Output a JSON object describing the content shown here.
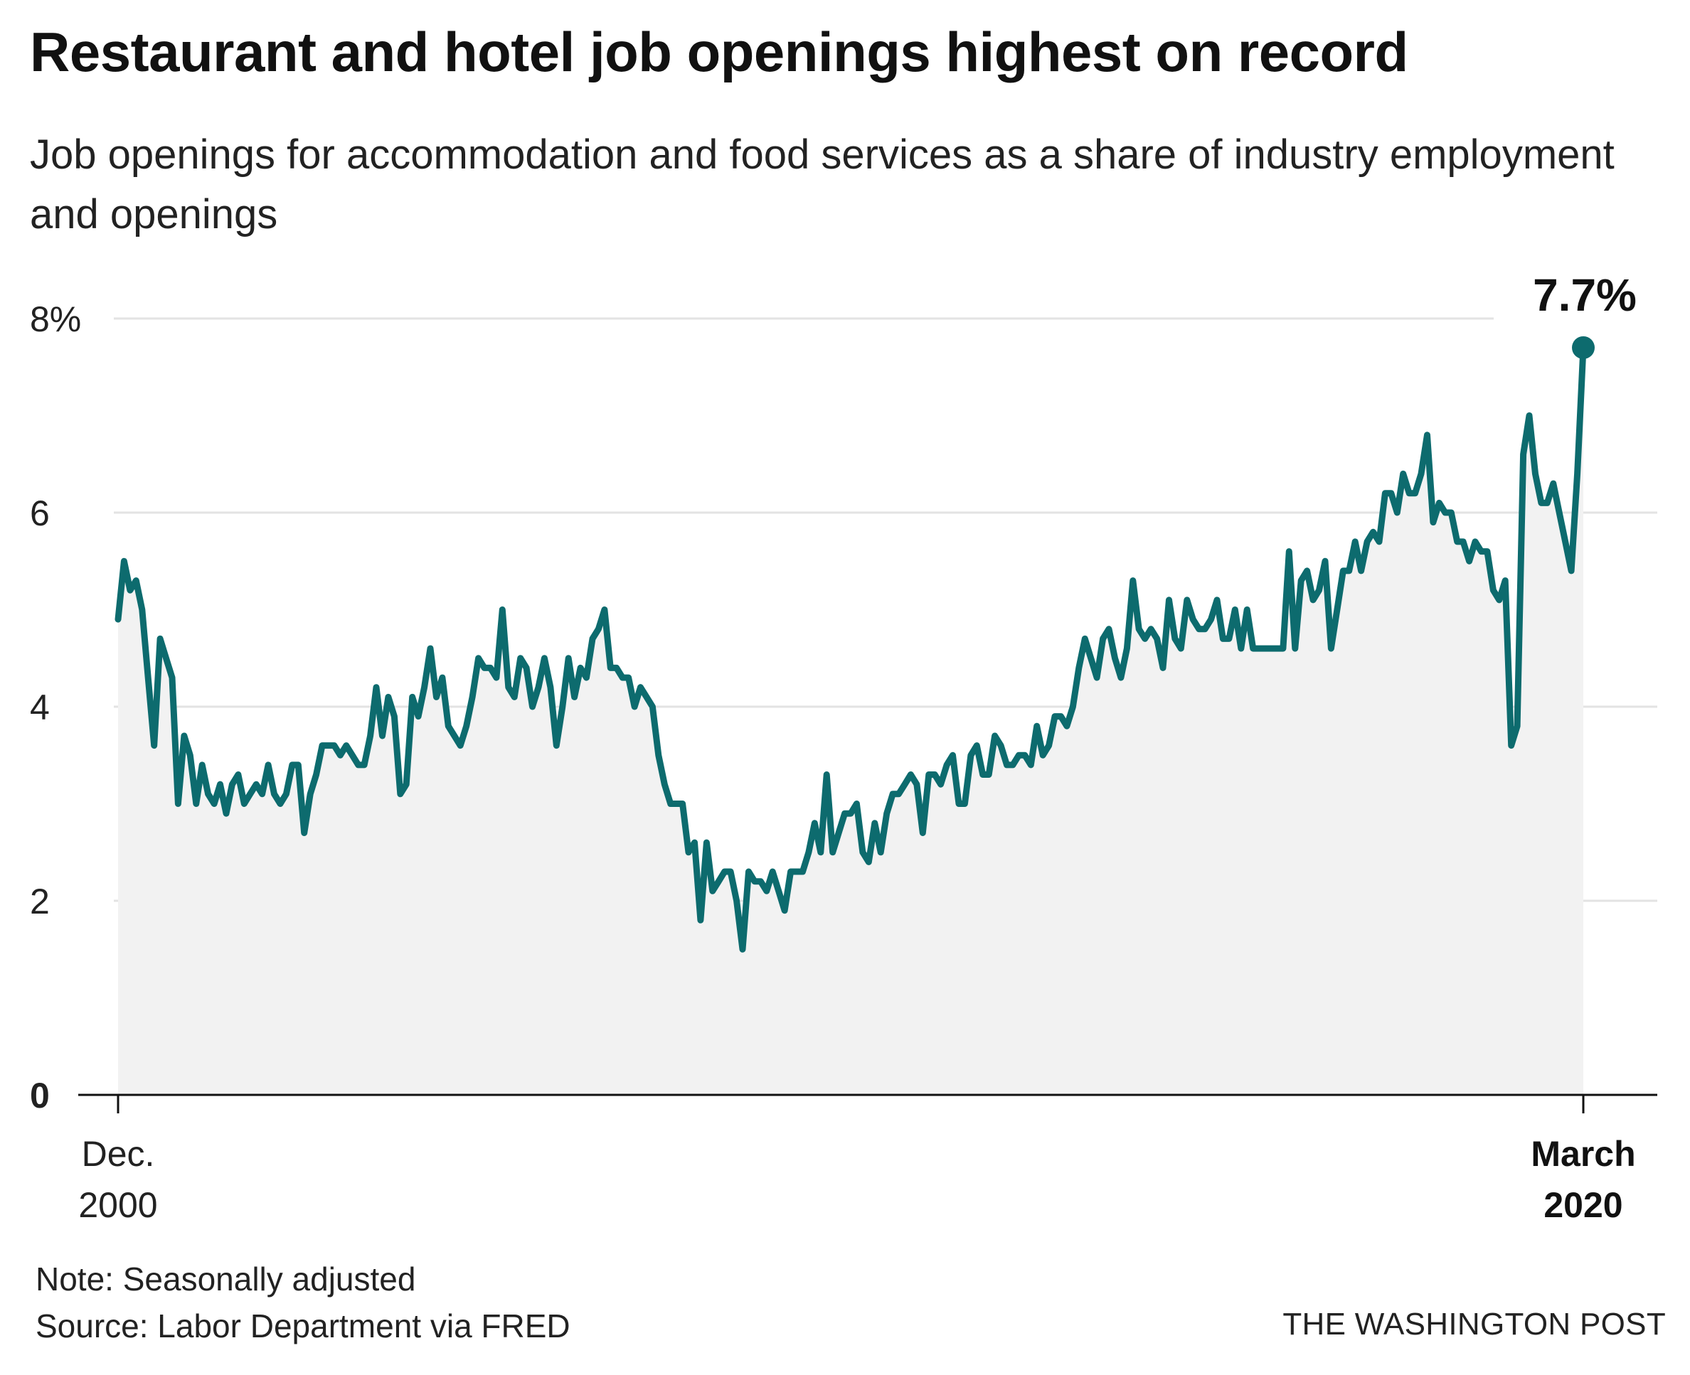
{
  "title": "Restaurant and hotel job openings highest on record",
  "subtitle": "Job openings for accommodation and food services as a share of industry employment and openings",
  "note": "Note: Seasonally adjusted",
  "source": "Source: Labor Department via FRED",
  "credit": "THE WASHINGTON POST",
  "colors": {
    "line": "#0d6b6e",
    "area": "#f2f2f2",
    "grid": "#e3e3e3",
    "axis": "#111111"
  },
  "chart_data": {
    "type": "area",
    "title": "Restaurant and hotel job openings highest on record",
    "ylabel": "",
    "xlabel": "",
    "ylim": [
      0,
      8
    ],
    "yticks": [
      {
        "value": 0,
        "label": "0"
      },
      {
        "value": 2,
        "label": "2"
      },
      {
        "value": 4,
        "label": "4"
      },
      {
        "value": 6,
        "label": "6"
      },
      {
        "value": 8,
        "label": "8%"
      }
    ],
    "xticks": [
      {
        "value": "2000-12",
        "lines": [
          "Dec.",
          "2000"
        ],
        "bold": false
      },
      {
        "value": "2020-03",
        "lines": [
          "March",
          "2020"
        ],
        "bold": true
      }
    ],
    "grid": true,
    "start": "2000-12",
    "end": "2020-03",
    "end_annotation": "7.7%",
    "series": [
      {
        "values": [
          4.9,
          5.5,
          5.2,
          5.3,
          5.0,
          4.3,
          3.6,
          4.7,
          4.5,
          4.3,
          3.0,
          3.7,
          3.5,
          3.0,
          3.4,
          3.1,
          3.0,
          3.2,
          2.9,
          3.2,
          3.3,
          3.0,
          3.1,
          3.2,
          3.1,
          3.4,
          3.1,
          3.0,
          3.1,
          3.4,
          3.4,
          2.7,
          3.1,
          3.3,
          3.6,
          3.6,
          3.6,
          3.5,
          3.6,
          3.5,
          3.4,
          3.4,
          3.7,
          4.2,
          3.7,
          4.1,
          3.9,
          3.1,
          3.2,
          4.1,
          3.9,
          4.2,
          4.6,
          4.1,
          4.3,
          3.8,
          3.7,
          3.6,
          3.8,
          4.1,
          4.5,
          4.4,
          4.4,
          4.3,
          5.0,
          4.2,
          4.1,
          4.5,
          4.4,
          4.0,
          4.2,
          4.5,
          4.2,
          3.6,
          4.0,
          4.5,
          4.1,
          4.4,
          4.3,
          4.7,
          4.8,
          5.0,
          4.4,
          4.4,
          4.3,
          4.3,
          4.0,
          4.2,
          4.1,
          4.0,
          3.5,
          3.2,
          3.0,
          3.0,
          3.0,
          2.5,
          2.6,
          1.8,
          2.6,
          2.1,
          2.2,
          2.3,
          2.3,
          2.0,
          1.5,
          2.3,
          2.2,
          2.2,
          2.1,
          2.3,
          2.1,
          1.9,
          2.3,
          2.3,
          2.3,
          2.5,
          2.8,
          2.5,
          3.3,
          2.5,
          2.7,
          2.9,
          2.9,
          3.0,
          2.5,
          2.4,
          2.8,
          2.5,
          2.9,
          3.1,
          3.1,
          3.2,
          3.3,
          3.2,
          2.7,
          3.3,
          3.3,
          3.2,
          3.4,
          3.5,
          3.0,
          3.0,
          3.5,
          3.6,
          3.3,
          3.3,
          3.7,
          3.6,
          3.4,
          3.4,
          3.5,
          3.5,
          3.4,
          3.8,
          3.5,
          3.6,
          3.9,
          3.9,
          3.8,
          4.0,
          4.4,
          4.7,
          4.5,
          4.3,
          4.7,
          4.8,
          4.5,
          4.3,
          4.6,
          5.3,
          4.8,
          4.7,
          4.8,
          4.7,
          4.4,
          5.1,
          4.7,
          4.6,
          5.1,
          4.9,
          4.8,
          4.8,
          4.9,
          5.1,
          4.7,
          4.7,
          5.0,
          4.6,
          5.0,
          4.6,
          4.6,
          4.6,
          4.6,
          4.6,
          4.6,
          5.6,
          4.6,
          5.3,
          5.4,
          5.1,
          5.2,
          5.5,
          4.6,
          5.0,
          5.4,
          5.4,
          5.7,
          5.4,
          5.7,
          5.8,
          5.7,
          6.2,
          6.2,
          6.0,
          6.4,
          6.2,
          6.2,
          6.4,
          6.8,
          5.9,
          6.1,
          6.0,
          6.0,
          5.7,
          5.7,
          5.5,
          5.7,
          5.6,
          5.6,
          5.2,
          5.1,
          5.3,
          3.6,
          3.8,
          6.6,
          7.0,
          6.4,
          6.1,
          6.1,
          6.3,
          6.0,
          5.7,
          5.4,
          6.4,
          7.7
        ]
      }
    ]
  }
}
